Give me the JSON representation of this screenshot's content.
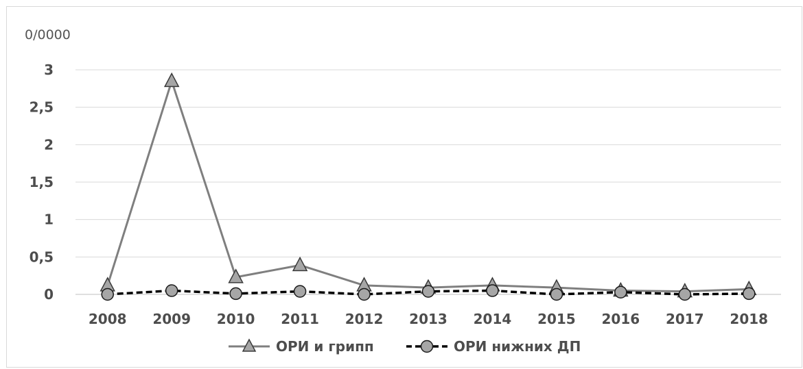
{
  "chart_data": {
    "type": "line",
    "y_unit_label": "0/0000",
    "categories": [
      "2008",
      "2009",
      "2010",
      "2011",
      "2012",
      "2013",
      "2014",
      "2015",
      "2016",
      "2017",
      "2018"
    ],
    "ylim": [
      0,
      3
    ],
    "yticks": [
      "0",
      "0,5",
      "1",
      "1,5",
      "2",
      "2,5",
      "3"
    ],
    "ytick_values": [
      0,
      0.5,
      1,
      1.5,
      2,
      2.5,
      3
    ],
    "grid": true,
    "legend_position": "bottom",
    "series": [
      {
        "name": "ОРИ и грипп",
        "values": [
          0.12,
          2.85,
          0.23,
          0.39,
          0.12,
          0.09,
          0.12,
          0.09,
          0.05,
          0.04,
          0.07
        ],
        "color": "#7f7f7f",
        "marker": "triangle",
        "line_style": "solid"
      },
      {
        "name": "ОРИ нижних ДП",
        "values": [
          0.0,
          0.05,
          0.01,
          0.04,
          0.0,
          0.04,
          0.05,
          0.0,
          0.03,
          0.0,
          0.01
        ],
        "color": "#000000",
        "marker": "circle",
        "line_style": "dashed"
      }
    ]
  }
}
